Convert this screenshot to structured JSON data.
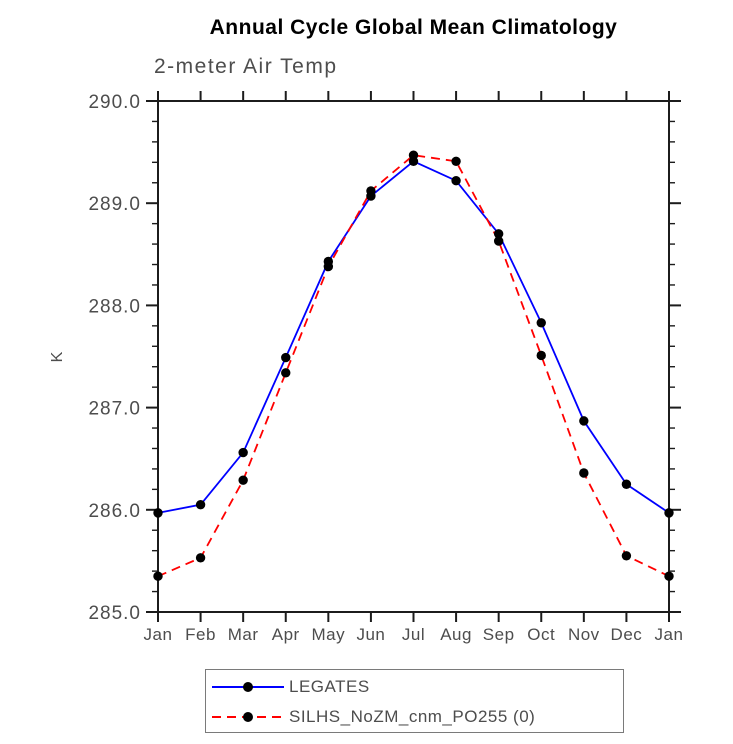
{
  "title": "Annual Cycle Global Mean Climatology",
  "subtitle": "2-meter Air Temp",
  "colors": {
    "legates_line": "#0000ff",
    "silhs_line": "#ff0000",
    "marker": "#000000",
    "axis": "#1c1c1c",
    "label_gray": "#4d4d4d",
    "title_black": "#000000",
    "background": "#ffffff"
  },
  "chart_data": {
    "type": "line",
    "title": "Annual Cycle Global Mean Climatology",
    "subtitle": "2-meter Air Temp",
    "xlabel": "",
    "ylabel": "K",
    "categories": [
      "Jan",
      "Feb",
      "Mar",
      "Apr",
      "May",
      "Jun",
      "Jul",
      "Aug",
      "Sep",
      "Oct",
      "Nov",
      "Dec",
      "Jan"
    ],
    "ylim": [
      285.0,
      290.0
    ],
    "ytick_major_step": 1.0,
    "ytick_minor_step": 0.2,
    "yticklabels": [
      "285.0",
      "286.0",
      "287.0",
      "288.0",
      "289.0",
      "290.0"
    ],
    "grid": false,
    "legend_position": "bottom",
    "series": [
      {
        "id": "legates",
        "name": "LEGATES",
        "color": "#0000ff",
        "style": "solid",
        "marker": "circle",
        "values": [
          285.97,
          286.05,
          286.56,
          287.49,
          288.43,
          289.07,
          289.41,
          289.22,
          288.7,
          287.83,
          286.87,
          286.25,
          285.97
        ]
      },
      {
        "id": "silhs",
        "name": "SILHS_NoZM_cnm_PO255 (0)",
        "color": "#ff0000",
        "style": "dashed",
        "marker": "circle",
        "values": [
          285.35,
          285.53,
          286.29,
          287.34,
          288.38,
          289.12,
          289.47,
          289.41,
          288.63,
          287.51,
          286.36,
          285.55,
          285.35
        ]
      }
    ]
  }
}
